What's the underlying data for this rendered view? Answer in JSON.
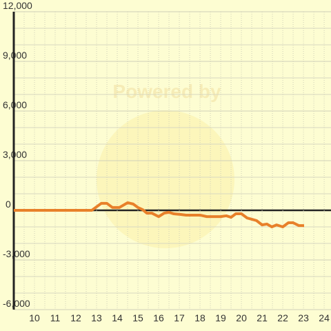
{
  "chart_data": {
    "type": "line",
    "watermark": "Powered by",
    "x": [
      9,
      12.77,
      13.23,
      13.5,
      13.77,
      14.1,
      14.5,
      14.77,
      15,
      15.23,
      15.43,
      15.67,
      16,
      16.27,
      16.5,
      16.73,
      17.07,
      17.33,
      18,
      18.33,
      19,
      19.27,
      19.5,
      19.73,
      20,
      20.27,
      20.5,
      20.73,
      21,
      21.23,
      21.47,
      21.7,
      22,
      22.27,
      22.5,
      22.77,
      23.03
    ],
    "series": [
      {
        "color": "#e8802a",
        "values": [
          0,
          0,
          420,
          420,
          170,
          170,
          460,
          380,
          170,
          40,
          -170,
          -170,
          -380,
          -170,
          -120,
          -210,
          -250,
          -290,
          -290,
          -380,
          -380,
          -330,
          -420,
          -210,
          -210,
          -460,
          -540,
          -620,
          -880,
          -830,
          -1000,
          -880,
          -1000,
          -750,
          -750,
          -920,
          -920
        ]
      }
    ],
    "xlim": [
      9,
      24.33
    ],
    "xticks": [
      10,
      11,
      12,
      13,
      14,
      15,
      16,
      17,
      18,
      19,
      20,
      21,
      22,
      23,
      24
    ],
    "ylim": [
      -6000,
      12000
    ],
    "yticks": [
      {
        "value": -6000,
        "label": "-6,000"
      },
      {
        "value": -3000,
        "label": "-3,000"
      },
      0,
      {
        "value": 3000,
        "label": "3,000"
      },
      {
        "value": 6000,
        "label": "6,000"
      },
      {
        "value": 9000,
        "label": "9,000"
      },
      {
        "value": 12000,
        "label": "12,000"
      }
    ],
    "grid": true
  }
}
